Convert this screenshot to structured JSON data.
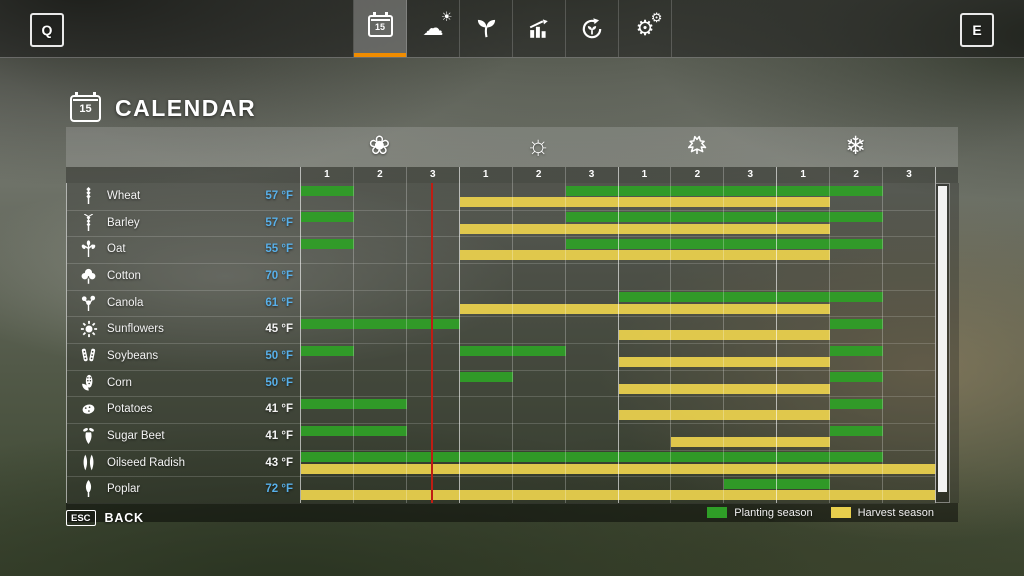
{
  "topbar": {
    "left_key": "Q",
    "right_key": "E",
    "tabs": [
      {
        "name": "calendar",
        "icon": "calendar-15-icon",
        "badge": "15",
        "active": true
      },
      {
        "name": "weather",
        "icon": "weather-icon",
        "active": false
      },
      {
        "name": "crops",
        "icon": "seedling-icon",
        "active": false
      },
      {
        "name": "statistics",
        "icon": "production-stats-icon",
        "active": false
      },
      {
        "name": "crop-rotation",
        "icon": "crop-rotation-icon",
        "active": false
      },
      {
        "name": "settings",
        "icon": "settings-gears-icon",
        "active": false
      }
    ]
  },
  "header": {
    "title": "CALENDAR",
    "icon_badge": "15"
  },
  "calendar": {
    "seasons": [
      {
        "name": "Spring",
        "icon": "flower-icon"
      },
      {
        "name": "Summer",
        "icon": "sun-icon"
      },
      {
        "name": "Autumn",
        "icon": "maple-leaf-icon"
      },
      {
        "name": "Winter",
        "icon": "snowflake-icon"
      }
    ],
    "month_labels": [
      "1",
      "2",
      "3"
    ],
    "current_marker_month": 2.48,
    "rows": [
      {
        "crop": "Wheat",
        "icon": "wheat-icon",
        "temp": "57 °F",
        "temp_blue": true,
        "planting": [
          [
            1,
            2
          ],
          [
            6,
            12
          ]
        ],
        "harvest": [
          [
            4,
            11
          ]
        ]
      },
      {
        "crop": "Barley",
        "icon": "barley-icon",
        "temp": "57 °F",
        "temp_blue": true,
        "planting": [
          [
            1,
            2
          ],
          [
            6,
            12
          ]
        ],
        "harvest": [
          [
            4,
            11
          ]
        ]
      },
      {
        "crop": "Oat",
        "icon": "oat-icon",
        "temp": "55 °F",
        "temp_blue": true,
        "planting": [
          [
            1,
            2
          ],
          [
            6,
            12
          ]
        ],
        "harvest": [
          [
            4,
            11
          ]
        ]
      },
      {
        "crop": "Cotton",
        "icon": "cotton-icon",
        "temp": "70 °F",
        "temp_blue": true,
        "planting": [],
        "harvest": []
      },
      {
        "crop": "Canola",
        "icon": "canola-icon",
        "temp": "61 °F",
        "temp_blue": true,
        "planting": [
          [
            7,
            12
          ]
        ],
        "harvest": [
          [
            4,
            11
          ]
        ]
      },
      {
        "crop": "Sunflowers",
        "icon": "sunflower-icon",
        "temp": "45 °F",
        "temp_blue": false,
        "planting": [
          [
            1,
            4
          ],
          [
            11,
            12
          ]
        ],
        "harvest": [
          [
            7,
            11
          ]
        ]
      },
      {
        "crop": "Soybeans",
        "icon": "soybeans-icon",
        "temp": "50 °F",
        "temp_blue": true,
        "planting": [
          [
            1,
            2
          ],
          [
            4,
            6
          ],
          [
            11,
            12
          ]
        ],
        "harvest": [
          [
            7,
            11
          ]
        ]
      },
      {
        "crop": "Corn",
        "icon": "corn-icon",
        "temp": "50 °F",
        "temp_blue": true,
        "planting": [
          [
            4,
            5
          ],
          [
            11,
            12
          ]
        ],
        "harvest": [
          [
            7,
            11
          ]
        ]
      },
      {
        "crop": "Potatoes",
        "icon": "potatoes-icon",
        "temp": "41 °F",
        "temp_blue": false,
        "planting": [
          [
            1,
            3
          ],
          [
            11,
            12
          ]
        ],
        "harvest": [
          [
            7,
            11
          ]
        ]
      },
      {
        "crop": "Sugar Beet",
        "icon": "sugar-beet-icon",
        "temp": "41 °F",
        "temp_blue": false,
        "planting": [
          [
            1,
            3
          ],
          [
            11,
            12
          ]
        ],
        "harvest": [
          [
            8,
            11
          ]
        ]
      },
      {
        "crop": "Oilseed Radish",
        "icon": "oilseed-radish-icon",
        "temp": "43 °F",
        "temp_blue": false,
        "planting": [
          [
            1,
            12
          ]
        ],
        "harvest": [
          [
            1,
            13
          ]
        ]
      },
      {
        "crop": "Poplar",
        "icon": "poplar-icon",
        "temp": "72 °F",
        "temp_blue": true,
        "planting": [
          [
            9,
            11
          ]
        ],
        "harvest": [
          [
            1,
            13
          ]
        ]
      }
    ]
  },
  "legend": {
    "items": [
      {
        "label": "Planting season",
        "color": "#2f9e27"
      },
      {
        "label": "Harvest season",
        "color": "#e8cf4d"
      }
    ]
  },
  "footer": {
    "key": "ESC",
    "label": "BACK"
  },
  "colors": {
    "accent_orange": "#f08c00",
    "planting_green": "#2f9e27",
    "harvest_yellow": "#e8cf4d",
    "marker_red": "#bf1d13",
    "temp_blue": "#58b0ea",
    "temp_white": "#f4f4f4"
  }
}
